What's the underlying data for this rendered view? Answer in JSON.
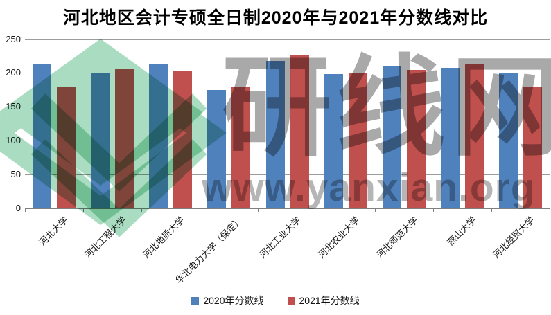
{
  "title": "河北地区会计专硕全日制2020年与2021年分数线对比",
  "chart_data": {
    "type": "bar",
    "categories": [
      "河北大学",
      "河北工程大学",
      "河北地质大学",
      "华北电力大学（保定）",
      "河北工业大学",
      "河北农业大学",
      "河北师范大学",
      "燕山大学",
      "河北经贸大学"
    ],
    "series": [
      {
        "name": "2020年分数线",
        "color": "#4F81BD",
        "values": [
          214,
          200,
          213,
          175,
          218,
          198,
          211,
          208,
          200
        ]
      },
      {
        "name": "2021年分数线",
        "color": "#C0504D",
        "values": [
          179,
          207,
          202,
          179,
          227,
          199,
          204,
          214,
          179
        ]
      }
    ],
    "xlabel": "",
    "ylabel": "",
    "ylim": [
      0,
      250
    ],
    "yticks": [
      0,
      50,
      100,
      150,
      200,
      250
    ],
    "grid": true,
    "legend_position": "bottom",
    "xlabel_rotation_deg": -45
  },
  "watermark": {
    "brand_text": "研线网",
    "url_text": "www.yanxian.org",
    "logo_name": "yanxian-diamond-logo",
    "logo_color": "#a9dcc1",
    "text_color": "#a9a9a9"
  },
  "colors": {
    "background": "#ffffff",
    "gridline": "#9c9c9c",
    "axis": "#7f7f7f",
    "title_text": "#000000"
  }
}
